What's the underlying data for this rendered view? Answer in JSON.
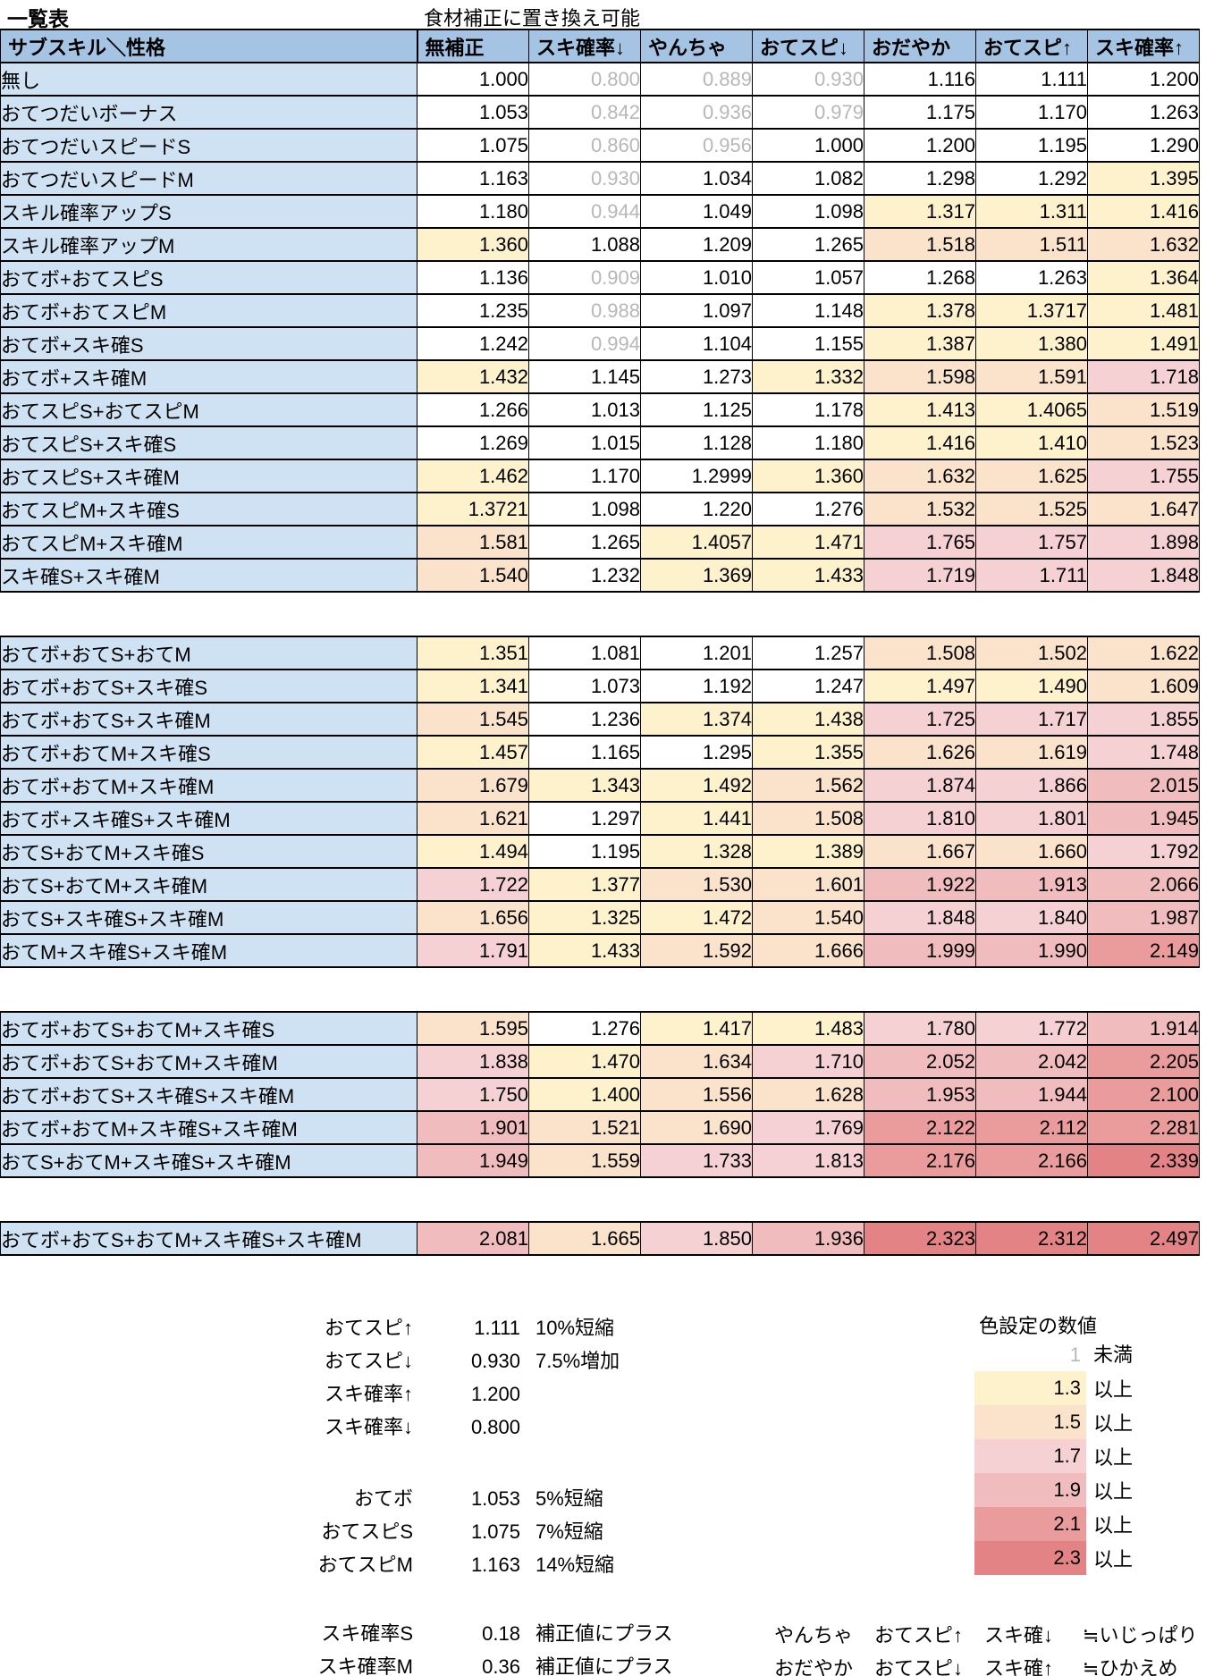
{
  "page": {
    "title": "一覧表",
    "subtitle": "食材補正に置き換え可能"
  },
  "chart_data": {
    "type": "table",
    "corner_header": "サブスキル＼性格",
    "columns": [
      "無補正",
      "スキ確率↓",
      "やんちゃ",
      "おてスピ↓",
      "おだやか",
      "おてスピ↑",
      "スキ確率↑"
    ],
    "blocks": [
      {
        "rows": [
          {
            "label": "無し",
            "values": [
              "1.000",
              "0.800",
              "0.889",
              "0.930",
              "1.116",
              "1.111",
              "1.200"
            ]
          },
          {
            "label": "おてつだいボーナス",
            "values": [
              "1.053",
              "0.842",
              "0.936",
              "0.979",
              "1.175",
              "1.170",
              "1.263"
            ]
          },
          {
            "label": "おてつだいスピードS",
            "values": [
              "1.075",
              "0.860",
              "0.956",
              "1.000",
              "1.200",
              "1.195",
              "1.290"
            ]
          },
          {
            "label": "おてつだいスピードM",
            "values": [
              "1.163",
              "0.930",
              "1.034",
              "1.082",
              "1.298",
              "1.292",
              "1.395"
            ]
          },
          {
            "label": "スキル確率アップS",
            "values": [
              "1.180",
              "0.944",
              "1.049",
              "1.098",
              "1.317",
              "1.311",
              "1.416"
            ]
          },
          {
            "label": "スキル確率アップM",
            "values": [
              "1.360",
              "1.088",
              "1.209",
              "1.265",
              "1.518",
              "1.511",
              "1.632"
            ]
          },
          {
            "label": "おてボ+おてスピS",
            "values": [
              "1.136",
              "0.909",
              "1.010",
              "1.057",
              "1.268",
              "1.263",
              "1.364"
            ]
          },
          {
            "label": "おてボ+おてスピM",
            "values": [
              "1.235",
              "0.988",
              "1.097",
              "1.148",
              "1.378",
              "1.3717",
              "1.481"
            ]
          },
          {
            "label": "おてボ+スキ確S",
            "values": [
              "1.242",
              "0.994",
              "1.104",
              "1.155",
              "1.387",
              "1.380",
              "1.491"
            ]
          },
          {
            "label": "おてボ+スキ確M",
            "values": [
              "1.432",
              "1.145",
              "1.273",
              "1.332",
              "1.598",
              "1.591",
              "1.718"
            ]
          },
          {
            "label": "おてスピS+おてスピM",
            "values": [
              "1.266",
              "1.013",
              "1.125",
              "1.178",
              "1.413",
              "1.4065",
              "1.519"
            ]
          },
          {
            "label": "おてスピS+スキ確S",
            "values": [
              "1.269",
              "1.015",
              "1.128",
              "1.180",
              "1.416",
              "1.410",
              "1.523"
            ]
          },
          {
            "label": "おてスピS+スキ確M",
            "values": [
              "1.462",
              "1.170",
              "1.2999",
              "1.360",
              "1.632",
              "1.625",
              "1.755"
            ]
          },
          {
            "label": "おてスピM+スキ確S",
            "values": [
              "1.3721",
              "1.098",
              "1.220",
              "1.276",
              "1.532",
              "1.525",
              "1.647"
            ]
          },
          {
            "label": "おてスピM+スキ確M",
            "values": [
              "1.581",
              "1.265",
              "1.4057",
              "1.471",
              "1.765",
              "1.757",
              "1.898"
            ]
          },
          {
            "label": "スキ確S+スキ確M",
            "values": [
              "1.540",
              "1.232",
              "1.369",
              "1.433",
              "1.719",
              "1.711",
              "1.848"
            ]
          }
        ]
      },
      {
        "rows": [
          {
            "label": "おてボ+おてS+おてM",
            "values": [
              "1.351",
              "1.081",
              "1.201",
              "1.257",
              "1.508",
              "1.502",
              "1.622"
            ]
          },
          {
            "label": "おてボ+おてS+スキ確S",
            "values": [
              "1.341",
              "1.073",
              "1.192",
              "1.247",
              "1.497",
              "1.490",
              "1.609"
            ]
          },
          {
            "label": "おてボ+おてS+スキ確M",
            "values": [
              "1.545",
              "1.236",
              "1.374",
              "1.438",
              "1.725",
              "1.717",
              "1.855"
            ]
          },
          {
            "label": "おてボ+おてM+スキ確S",
            "values": [
              "1.457",
              "1.165",
              "1.295",
              "1.355",
              "1.626",
              "1.619",
              "1.748"
            ]
          },
          {
            "label": "おてボ+おてM+スキ確M",
            "values": [
              "1.679",
              "1.343",
              "1.492",
              "1.562",
              "1.874",
              "1.866",
              "2.015"
            ]
          },
          {
            "label": "おてボ+スキ確S+スキ確M",
            "values": [
              "1.621",
              "1.297",
              "1.441",
              "1.508",
              "1.810",
              "1.801",
              "1.945"
            ]
          },
          {
            "label": "おてS+おてM+スキ確S",
            "values": [
              "1.494",
              "1.195",
              "1.328",
              "1.389",
              "1.667",
              "1.660",
              "1.792"
            ]
          },
          {
            "label": "おてS+おてM+スキ確M",
            "values": [
              "1.722",
              "1.377",
              "1.530",
              "1.601",
              "1.922",
              "1.913",
              "2.066"
            ]
          },
          {
            "label": "おてS+スキ確S+スキ確M",
            "values": [
              "1.656",
              "1.325",
              "1.472",
              "1.540",
              "1.848",
              "1.840",
              "1.987"
            ]
          },
          {
            "label": "おてM+スキ確S+スキ確M",
            "values": [
              "1.791",
              "1.433",
              "1.592",
              "1.666",
              "1.999",
              "1.990",
              "2.149"
            ]
          }
        ]
      },
      {
        "rows": [
          {
            "label": "おてボ+おてS+おてM+スキ確S",
            "values": [
              "1.595",
              "1.276",
              "1.417",
              "1.483",
              "1.780",
              "1.772",
              "1.914"
            ]
          },
          {
            "label": "おてボ+おてS+おてM+スキ確M",
            "values": [
              "1.838",
              "1.470",
              "1.634",
              "1.710",
              "2.052",
              "2.042",
              "2.205"
            ]
          },
          {
            "label": "おてボ+おてS+スキ確S+スキ確M",
            "values": [
              "1.750",
              "1.400",
              "1.556",
              "1.628",
              "1.953",
              "1.944",
              "2.100"
            ]
          },
          {
            "label": "おてボ+おてM+スキ確S+スキ確M",
            "values": [
              "1.901",
              "1.521",
              "1.690",
              "1.769",
              "2.122",
              "2.112",
              "2.281"
            ]
          },
          {
            "label": "おてS+おてM+スキ確S+スキ確M",
            "values": [
              "1.949",
              "1.559",
              "1.733",
              "1.813",
              "2.176",
              "2.166",
              "2.339"
            ]
          }
        ]
      },
      {
        "rows": [
          {
            "label": "おてボ+おてS+おてM+スキ確S+スキ確M",
            "values": [
              "2.081",
              "1.665",
              "1.850",
              "1.936",
              "2.323",
              "2.312",
              "2.497"
            ]
          }
        ]
      }
    ]
  },
  "legend_multipliers": {
    "rows": [
      {
        "label": "おてスピ↑",
        "value": "1.111",
        "desc": "10%短縮"
      },
      {
        "label": "おてスピ↓",
        "value": "0.930",
        "desc": "7.5%増加"
      },
      {
        "label": "スキ確率↑",
        "value": "1.200",
        "desc": ""
      },
      {
        "label": "スキ確率↓",
        "value": "0.800",
        "desc": ""
      },
      {
        "label": "おてボ",
        "value": "1.053",
        "desc": "5%短縮"
      },
      {
        "label": "おてスピS",
        "value": "1.075",
        "desc": "7%短縮"
      },
      {
        "label": "おてスピM",
        "value": "1.163",
        "desc": "14%短縮"
      },
      {
        "label": "スキ確率S",
        "value": "0.18",
        "desc": "補正値にプラス"
      },
      {
        "label": "スキ確率M",
        "value": "0.36",
        "desc": "補正値にプラス"
      }
    ]
  },
  "color_legend": {
    "title": "色設定の数値",
    "below_row": {
      "value": "1",
      "label": "未満"
    },
    "rows": [
      {
        "value": "1.3",
        "label": "以上",
        "color": "#fef2cc"
      },
      {
        "value": "1.5",
        "label": "以上",
        "color": "#fae3ca"
      },
      {
        "value": "1.7",
        "label": "以上",
        "color": "#f5d1d4"
      },
      {
        "value": "1.9",
        "label": "以上",
        "color": "#f1bcbe"
      },
      {
        "value": "2.1",
        "label": "以上",
        "color": "#ea9c9d"
      },
      {
        "value": "2.3",
        "label": "以上",
        "color": "#e48385"
      }
    ]
  },
  "nature_equivalents": [
    {
      "cols": [
        "やんちゃ",
        "おてスピ↑",
        "スキ確↓",
        "≒いじっぱり"
      ]
    },
    {
      "cols": [
        "おだやか",
        "おてスピ↓",
        "スキ確↑",
        "≒ひかえめ"
      ]
    }
  ],
  "colors": {
    "header_bg": "#a5c3e3",
    "row_label_bg": "#cfe2f3",
    "grid": "#000000",
    "muted_text": "#b7b7b7",
    "cell_default_bg": "#ffffff"
  }
}
